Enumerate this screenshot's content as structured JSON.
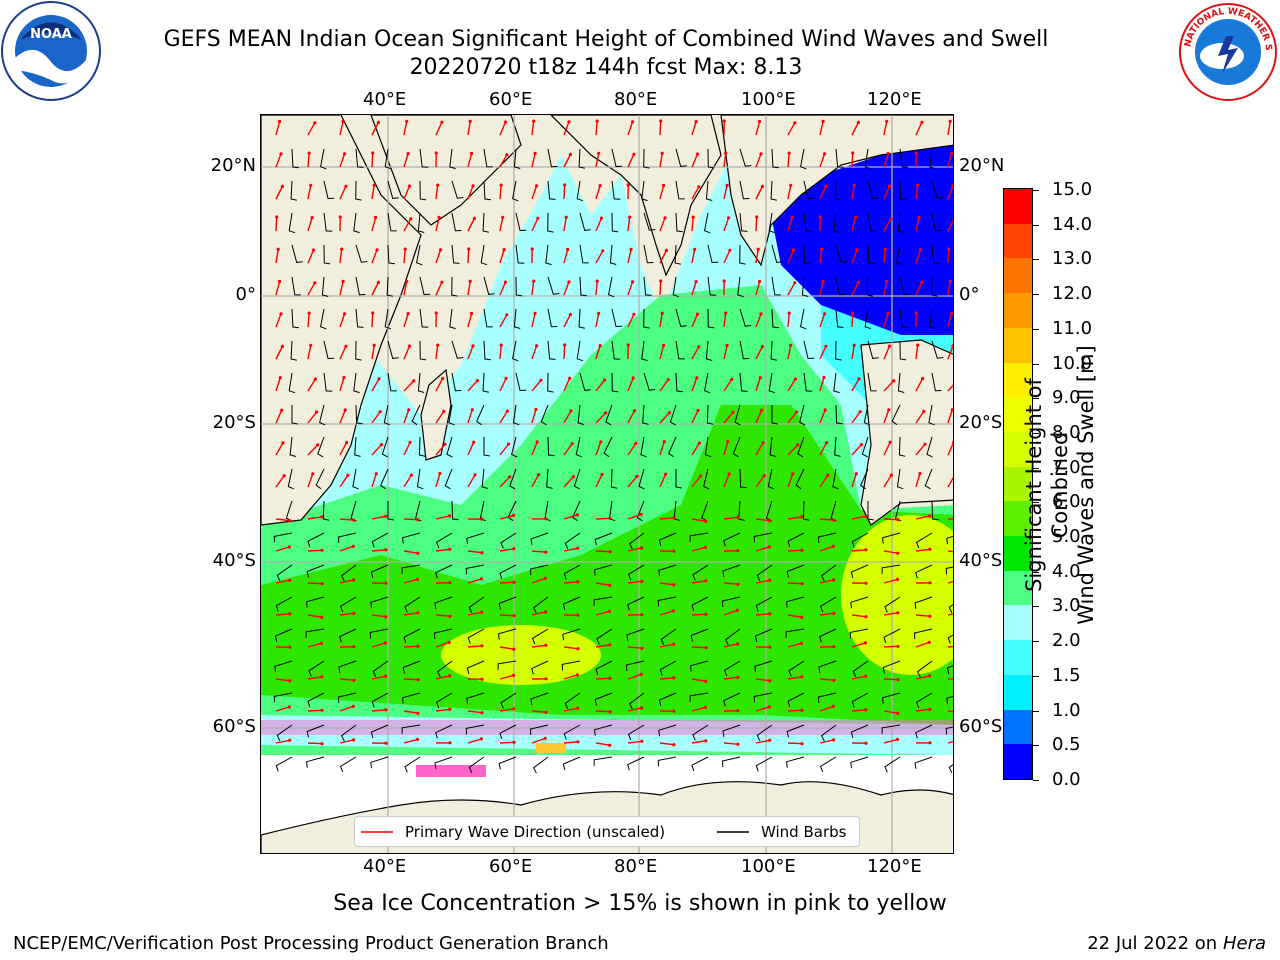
{
  "title": {
    "line1": "GEFS MEAN Indian Ocean Significant Height of Combined Wind Waves and Swell",
    "line2": "20220720 t18z 144h fcst   Max: 8.13"
  },
  "logos": {
    "left": {
      "name": "noaa-logo",
      "text": "NOAA"
    },
    "right": {
      "name": "nws-logo",
      "text": "NATIONAL WEATHER SERVICE"
    }
  },
  "map": {
    "lon_ticks_top": [
      "40°E",
      "60°E",
      "80°E",
      "100°E",
      "120°E"
    ],
    "lon_ticks_bottom": [
      "40°E",
      "60°E",
      "80°E",
      "100°E",
      "120°E"
    ],
    "lat_ticks_left": [
      "20°N",
      "0°",
      "20°S",
      "40°S",
      "60°S"
    ],
    "lat_ticks_right": [
      "20°N",
      "0°",
      "20°S",
      "40°S",
      "60°S"
    ],
    "colors": {
      "land": "#f1eedc",
      "grid": "#b0b0b0",
      "arrow": "#ff0000",
      "barb": "#000000"
    }
  },
  "legend": {
    "wave_direction": "Primary Wave Direction (unscaled)",
    "wind_barbs": "Wind Barbs"
  },
  "colorbar": {
    "title_line1": "Significant Height of Combined",
    "title_line2": "Wind Waves and Swell [m]",
    "tick_labels": [
      "0.0",
      "0.5",
      "1.0",
      "1.5",
      "2.0",
      "3.0",
      "4.0",
      "5.0",
      "6.0",
      "7.0",
      "8.0",
      "9.0",
      "10.0",
      "11.0",
      "12.0",
      "13.0",
      "14.0",
      "15.0"
    ],
    "colors": [
      "#0000ff",
      "#0072ff",
      "#00f0ff",
      "#45ffff",
      "#a8ffff",
      "#4cff82",
      "#00e600",
      "#5cf000",
      "#a9f500",
      "#d4ff00",
      "#f0ff00",
      "#ffee00",
      "#ffc400",
      "#ff9900",
      "#ff7300",
      "#ff4400",
      "#ff0000"
    ]
  },
  "sea_ice_note": "Sea Ice Concentration > 15% is shown in pink to yellow",
  "footer": {
    "left": "NCEP/EMC/Verification Post Processing Product Generation Branch",
    "right_date": "22 Jul 2022 on ",
    "right_host": "Hera"
  }
}
